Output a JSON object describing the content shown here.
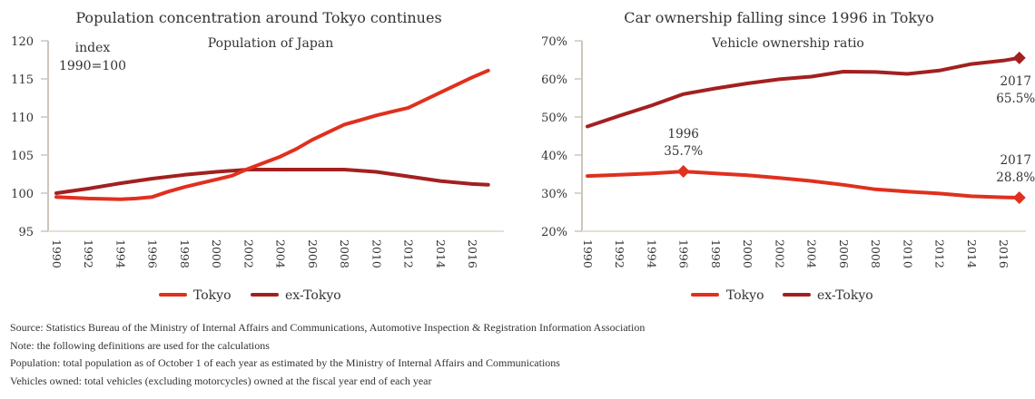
{
  "colors": {
    "tokyo": "#e0301e",
    "ex_tokyo": "#a32020",
    "axis": "#cdc6b8"
  },
  "chart_data": [
    {
      "type": "line",
      "title": "Population concentration around Tokyo continues",
      "subtitle": "Population of Japan",
      "ylabel": "index\n1990=100",
      "ylabel_lines": [
        "index",
        "1990=100"
      ],
      "xlabel": "",
      "ylim": [
        95,
        120
      ],
      "yticks": [
        95,
        100,
        105,
        110,
        115,
        120
      ],
      "xlim": [
        1990,
        2017
      ],
      "xticks": [
        "1990",
        "1992",
        "1994",
        "1996",
        "1998",
        "2000",
        "2002",
        "2004",
        "2006",
        "2008",
        "2010",
        "2012",
        "2014",
        "2016"
      ],
      "legend": [
        "Tokyo",
        "ex-Tokyo"
      ],
      "legend_position": "bottom",
      "grid": false,
      "series": [
        {
          "name": "Tokyo",
          "color": "#e0301e",
          "x": [
            1990,
            1992,
            1994,
            1995,
            1996,
            1997,
            1998,
            1999,
            2000,
            2001,
            2002,
            2003,
            2004,
            2005,
            2006,
            2007,
            2008,
            2009,
            2010,
            2011,
            2012,
            2013,
            2014,
            2015,
            2016,
            2017
          ],
          "values": [
            99.5,
            99.3,
            99.2,
            99.3,
            99.5,
            100.2,
            100.8,
            101.3,
            101.8,
            102.3,
            103.2,
            104.0,
            104.8,
            105.8,
            107.0,
            108.0,
            109.0,
            109.6,
            110.2,
            110.7,
            111.2,
            112.2,
            113.2,
            114.2,
            115.2,
            116.1
          ]
        },
        {
          "name": "ex-Tokyo",
          "color": "#a32020",
          "x": [
            1990,
            1992,
            1994,
            1996,
            1998,
            2000,
            2002,
            2004,
            2006,
            2008,
            2010,
            2012,
            2014,
            2016,
            2017
          ],
          "values": [
            100.0,
            100.6,
            101.3,
            101.9,
            102.4,
            102.8,
            103.1,
            103.1,
            103.1,
            103.1,
            102.8,
            102.2,
            101.6,
            101.2,
            101.1
          ]
        }
      ]
    },
    {
      "type": "line",
      "title": "Car ownership falling since 1996 in Tokyo",
      "subtitle": "Vehicle ownership ratio",
      "xlabel": "",
      "ylabel": "",
      "ylim": [
        20,
        70
      ],
      "yticks": [
        "20%",
        "30%",
        "40%",
        "50%",
        "60%",
        "70%"
      ],
      "ytick_values": [
        20,
        30,
        40,
        50,
        60,
        70
      ],
      "xlim": [
        1990,
        2017
      ],
      "xticks": [
        "1990",
        "1992",
        "1994",
        "1996",
        "1998",
        "2000",
        "2002",
        "2004",
        "2006",
        "2008",
        "2010",
        "2012",
        "2014",
        "2016"
      ],
      "legend": [
        "Tokyo",
        "ex-Tokyo"
      ],
      "legend_position": "bottom",
      "grid": false,
      "series": [
        {
          "name": "Tokyo",
          "color": "#e0301e",
          "x": [
            1990,
            1992,
            1994,
            1996,
            1998,
            2000,
            2002,
            2004,
            2006,
            2008,
            2010,
            2012,
            2014,
            2016,
            2017
          ],
          "values": [
            34.5,
            34.8,
            35.2,
            35.7,
            35.2,
            34.7,
            34.0,
            33.2,
            32.2,
            31.0,
            30.4,
            29.9,
            29.2,
            28.9,
            28.8
          ]
        },
        {
          "name": "ex-Tokyo",
          "color": "#a32020",
          "x": [
            1990,
            1992,
            1994,
            1996,
            1998,
            2000,
            2002,
            2004,
            2006,
            2008,
            2010,
            2012,
            2014,
            2016,
            2017
          ],
          "values": [
            47.5,
            50.3,
            53.0,
            56.0,
            57.5,
            58.8,
            59.9,
            60.6,
            61.9,
            61.8,
            61.3,
            62.2,
            63.9,
            64.8,
            65.5
          ]
        }
      ],
      "annotations": [
        {
          "series": "Tokyo",
          "x": 1996,
          "y": 35.7,
          "lines": [
            "1996",
            "35.7%"
          ],
          "position": "above"
        },
        {
          "series": "Tokyo",
          "x": 2017,
          "y": 28.8,
          "lines": [
            "2017",
            "28.8%"
          ],
          "position": "above"
        },
        {
          "series": "ex-Tokyo",
          "x": 2017,
          "y": 65.5,
          "lines": [
            "2017",
            "65.5%"
          ],
          "position": "below"
        }
      ]
    }
  ],
  "notes": [
    "Source: Statistics Bureau of the Ministry of Internal Affairs and Communications, Automotive Inspection & Registration Information Association",
    "Note: the following definitions are used for the calculations",
    "Population: total population as of October 1 of each year as estimated by the Ministry of Internal Affairs and Communications",
    "Vehicles owned: total vehicles (excluding motorcycles) owned at the fiscal year end of each year"
  ]
}
